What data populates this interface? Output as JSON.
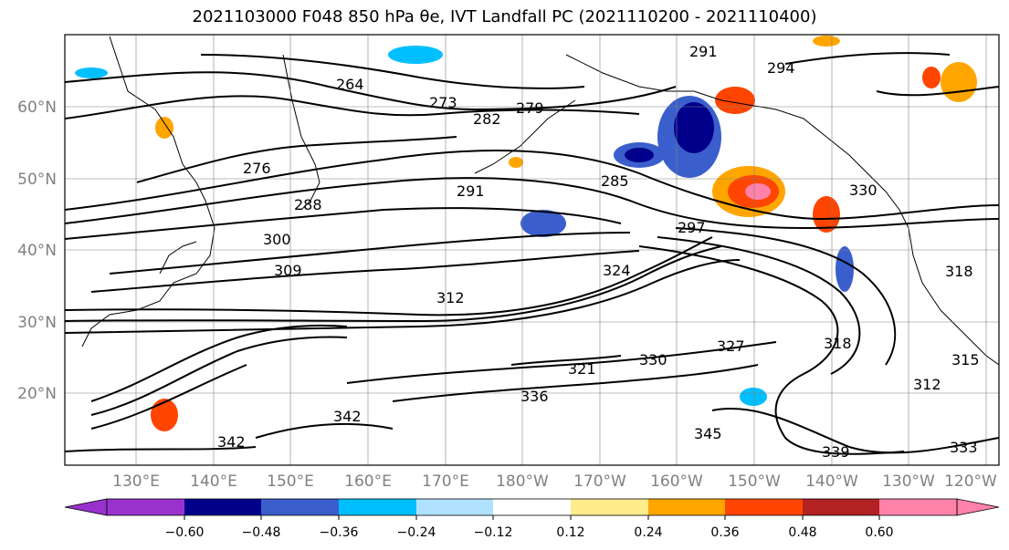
{
  "title": "2021103000 F048 850 hPa θe, IVT Landfall PC (2021110200 - 2021110400)",
  "lat_labels": [
    "60°N",
    "50°N",
    "40°N",
    "30°N",
    "20°N"
  ],
  "lon_labels": [
    "130°E",
    "140°E",
    "150°E",
    "160°E",
    "170°E",
    "180°W",
    "170°W",
    "160°W",
    "150°W",
    "140°W",
    "130°W",
    "120°W"
  ],
  "colorbar": {
    "colors": [
      "#9932cc",
      "#00008b",
      "#3a5fcd",
      "#00bfff",
      "#b0e2ff",
      "#ffffff",
      "#ffec8b",
      "#ffa500",
      "#ff4500",
      "#b22222",
      "#ff82ab"
    ],
    "ticks": [
      "−0.60",
      "−0.48",
      "−0.36",
      "−0.24",
      "−0.12",
      "0.12",
      "0.24",
      "0.36",
      "0.48",
      "0.60"
    ]
  },
  "contour_labels": [
    "291",
    "294",
    "264",
    "273",
    "279",
    "282",
    "276",
    "285",
    "291",
    "288",
    "297",
    "300",
    "309",
    "324",
    "312",
    "318",
    "321",
    "330",
    "327",
    "315",
    "336",
    "342",
    "345",
    "339",
    "342",
    "318",
    "312",
    "333",
    "330"
  ]
}
